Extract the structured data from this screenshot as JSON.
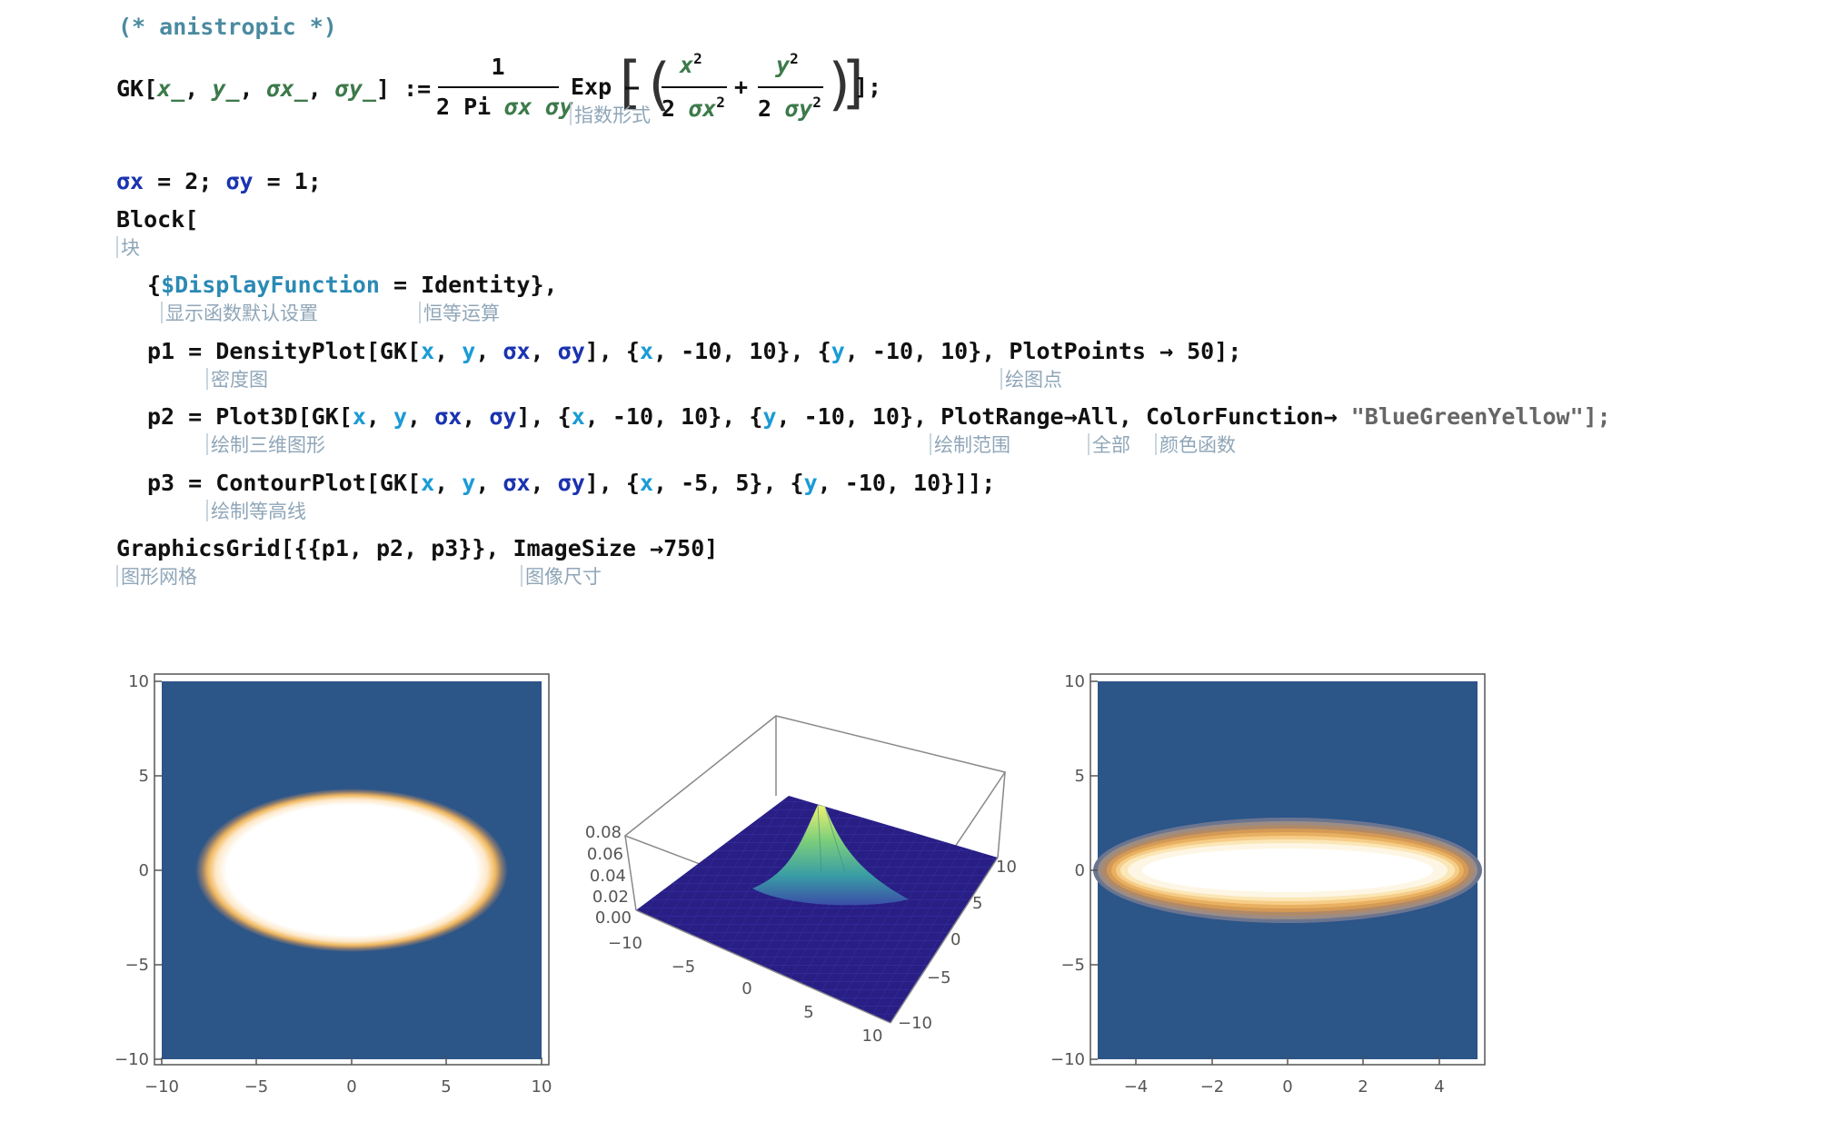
{
  "comment": "(* anistropic *)",
  "gk": {
    "lhs_name": "GK",
    "open": "[",
    "x_pat": "x_",
    "y_pat": "y_",
    "sx_pat": "σx_",
    "sy_pat": "σy_",
    "close_assign": "] :=",
    "num": "1",
    "den_prefix": "2 Pi",
    "den_sx": "σx",
    "den_sy": "σy",
    "exp": "Exp",
    "minus": "–",
    "frac1_num": "x",
    "frac1_den_pre": "2",
    "frac1_den": "σx",
    "sup2": "2",
    "plus": "+",
    "frac2_num": "y",
    "frac2_den_pre": "2",
    "frac2_den": "σy",
    "end": "];",
    "exp_tooltip": "指数形式"
  },
  "sigma_line": {
    "sx": "σx",
    "sx_val": "= 2;",
    "sy": "σy",
    "sy_val": "= 1;"
  },
  "block": {
    "head": "Block[",
    "tooltip": "块"
  },
  "line_display": {
    "open": "{",
    "sym": "$DisplayFunction",
    "eq": "=",
    "val": "Identity",
    "close": "},",
    "tip1": "显示函数默认设置",
    "tip2": "恒等运算"
  },
  "line_p1": {
    "lhs": "p1 =",
    "fn": "DensityPlot",
    "args_pre": "[GK[",
    "x": "x",
    "y": "y",
    "sx": "σx",
    "sy": "σy",
    "range1_pre": "], {",
    "r1_var": "x",
    "r1": ", -10, 10}, {",
    "r2_var": "y",
    "r2": ", -10, 10},",
    "opt": "PlotPoints",
    "arrow": "→",
    "opt_val": "50];",
    "tip_fn": "密度图",
    "tip_opt": "绘图点"
  },
  "line_p2": {
    "lhs": "p2 =",
    "fn": "Plot3D",
    "args_pre": "[GK[",
    "x": "x",
    "y": "y",
    "sx": "σx",
    "sy": "σy",
    "range1_pre": "], {",
    "r1_var": "x",
    "r1": ", -10, 10}, {",
    "r2_var": "y",
    "r2": ", -10, 10},",
    "opt1": "PlotRange",
    "arrow": "→",
    "opt1_val": "All,",
    "opt2": "ColorFunction",
    "opt2_val": "\"BlueGreenYellow\"];",
    "tip_fn": "绘制三维图形",
    "tip_opt1": "绘制范围",
    "tip_all": "全部",
    "tip_opt2": "颜色函数"
  },
  "line_p3": {
    "lhs": "p3 =",
    "fn": "ContourPlot",
    "args_pre": "[GK[",
    "x": "x",
    "y": "y",
    "sx": "σx",
    "sy": "σy",
    "range1_pre": "], {",
    "r1_var": "x",
    "r1": ", -5, 5}, {",
    "r2_var": "y",
    "r2": ", -10, 10}]];",
    "tip_fn": "绘制等高线"
  },
  "line_grid": {
    "fn": "GraphicsGrid",
    "args": "[{{p1, p2, p3}},",
    "opt": "ImageSize",
    "arrow": "→",
    "val": "750]",
    "tip_fn": "图形网格",
    "tip_opt": "图像尺寸"
  },
  "plot1": {
    "x_ticks": [
      "−10",
      "−5",
      "0",
      "5",
      "10"
    ],
    "y_ticks": [
      "10",
      "5",
      "0",
      "−5",
      "−10"
    ]
  },
  "plot2": {
    "z_ticks": [
      "0.08",
      "0.06",
      "0.04",
      "0.02",
      "0.00"
    ],
    "x_ticks": [
      "−10",
      "−5",
      "0",
      "5",
      "10"
    ],
    "y_ticks": [
      "10",
      "5",
      "0",
      "−5",
      "−10"
    ]
  },
  "plot3": {
    "x_ticks": [
      "−4",
      "−2",
      "0",
      "2",
      "4"
    ],
    "y_ticks": [
      "10",
      "5",
      "0",
      "−5",
      "−10"
    ]
  },
  "colors": {
    "comment": "#4a8aa0",
    "pattern": "#3c7a4a",
    "symbol": "#1a33b0",
    "tooltip": "#8fa6b8",
    "plot_bg": "#2c5588"
  }
}
